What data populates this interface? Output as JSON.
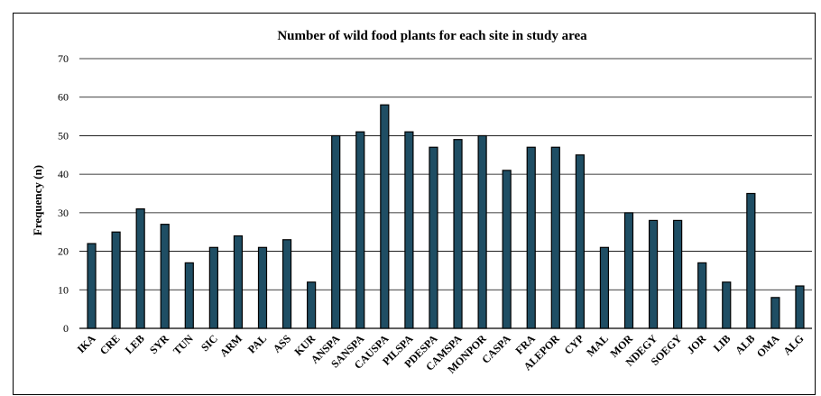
{
  "chart_data": {
    "type": "bar",
    "title": "Number of wild food plants for each site  in study area",
    "xlabel": "",
    "ylabel": "Frequency  (n)",
    "ylim": [
      0,
      70
    ],
    "yticks": [
      0,
      10,
      20,
      30,
      40,
      50,
      60,
      70
    ],
    "grid": true,
    "legend": "none",
    "categories": [
      "IKA",
      "CRE",
      "LEB",
      "SYR",
      "TUN",
      "SIC",
      "ARM",
      "PAL",
      "ASS",
      "KUR",
      "ANSPA",
      "SANSPA",
      "CAUSPA",
      "PILSPA",
      "PDESPA",
      "CAMSPA",
      "MONPOR",
      "CASPA",
      "FRA",
      "ALEPOR",
      "CYP",
      "MAL",
      "MOR",
      "NDEGY",
      "SOEGY",
      "JOR",
      "LIB",
      "ALB",
      "OMA",
      "ALG"
    ],
    "values": [
      22,
      25,
      31,
      27,
      17,
      21,
      24,
      21,
      23,
      12,
      50,
      51,
      58,
      51,
      47,
      49,
      50,
      41,
      47,
      47,
      45,
      21,
      30,
      28,
      28,
      17,
      12,
      35,
      8,
      11
    ],
    "bar_color": "#1f4e64",
    "bar_edge": "#000000",
    "grid_color": "#000000"
  }
}
